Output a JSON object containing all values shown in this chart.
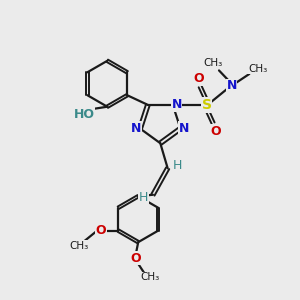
{
  "bg_color": "#ebebeb",
  "bond_color": "#1a1a1a",
  "N_color": "#1414cc",
  "O_color": "#cc0000",
  "S_color": "#cccc00",
  "teal_color": "#3a8a8a",
  "figsize": [
    3.0,
    3.0
  ],
  "dpi": 100,
  "xlim": [
    0,
    10
  ],
  "ylim": [
    0,
    10
  ]
}
